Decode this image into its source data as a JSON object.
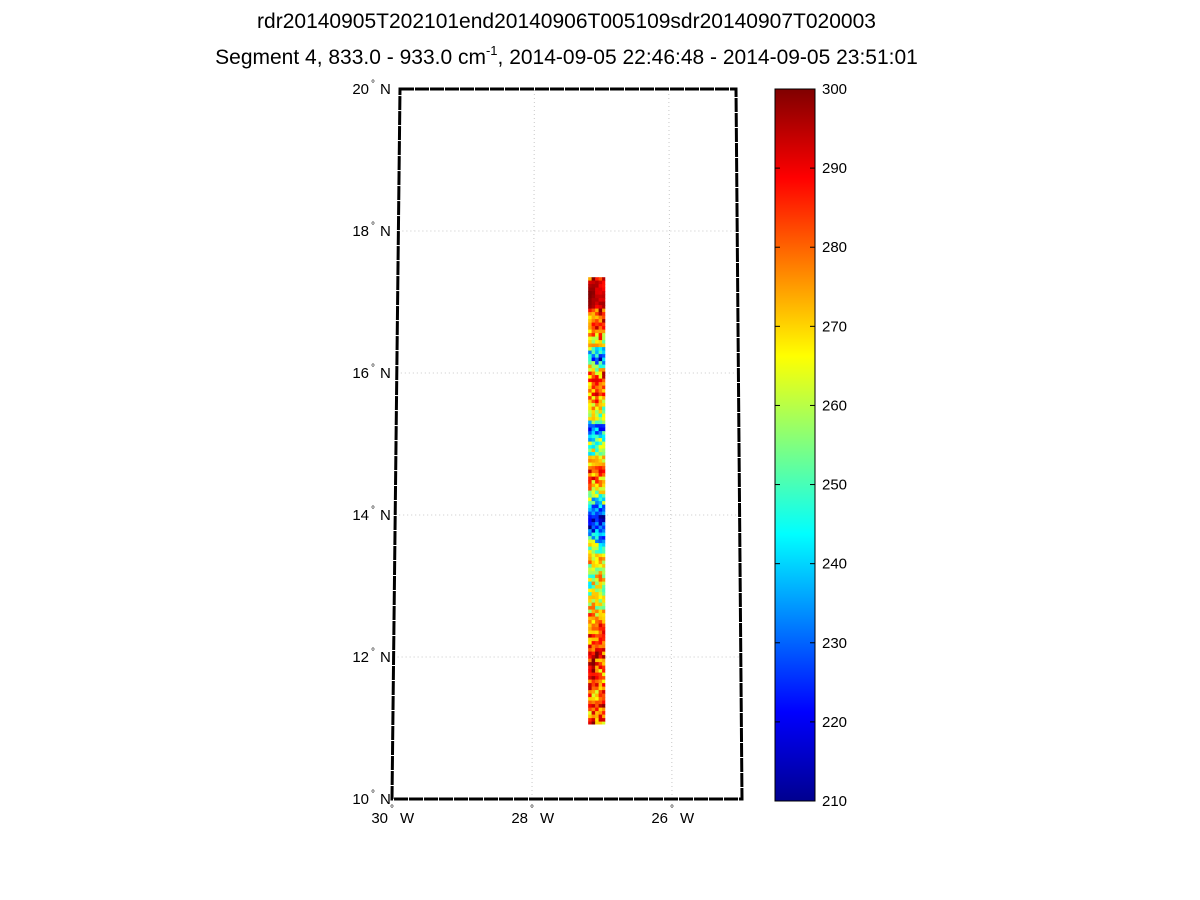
{
  "title": {
    "line1": "rdr20140905T202101end20140906T005109sdr20140907T020003",
    "line2_prefix": "Segment 4, 833.0 - 933.0 cm",
    "line2_sup": "-1",
    "line2_suffix": ", 2014-09-05 22:46:48 - 2014-09-05 23:51:01"
  },
  "map": {
    "lat_labels": [
      {
        "deg": "10",
        "hem": "N",
        "value": 10
      },
      {
        "deg": "12",
        "hem": "N",
        "value": 12
      },
      {
        "deg": "14",
        "hem": "N",
        "value": 14
      },
      {
        "deg": "16",
        "hem": "N",
        "value": 16
      },
      {
        "deg": "18",
        "hem": "N",
        "value": 18
      },
      {
        "deg": "20",
        "hem": "N",
        "value": 20
      }
    ],
    "lon_labels": [
      {
        "deg": "30",
        "hem": "W",
        "value": -30
      },
      {
        "deg": "28",
        "hem": "W",
        "value": -28
      },
      {
        "deg": "26",
        "hem": "W",
        "value": -26
      }
    ],
    "lat_range": [
      10,
      20
    ],
    "lon_range": [
      -30,
      -25
    ],
    "grid": "dotted",
    "swath": {
      "lon_range": [
        -27.2,
        -26.95
      ],
      "lat_range": [
        11.05,
        17.35
      ],
      "profile_lat": [
        11.05,
        11.5,
        11.9,
        12.3,
        12.6,
        12.9,
        13.2,
        13.5,
        13.8,
        14.0,
        14.2,
        14.4,
        14.6,
        14.8,
        15.0,
        15.2,
        15.4,
        15.7,
        16.0,
        16.2,
        16.4,
        16.6,
        16.85,
        16.95,
        17.35
      ],
      "profile_value": [
        281,
        280,
        283,
        286,
        272,
        255,
        268,
        265,
        222,
        220,
        250,
        270,
        278,
        262,
        258,
        232,
        262,
        275,
        281,
        230,
        262,
        278,
        282,
        298,
        289
      ]
    }
  },
  "colorbar": {
    "ticks": [
      "210",
      "220",
      "230",
      "240",
      "250",
      "260",
      "270",
      "280",
      "290",
      "300"
    ],
    "min": 210,
    "max": 300,
    "colormap": "jet"
  }
}
